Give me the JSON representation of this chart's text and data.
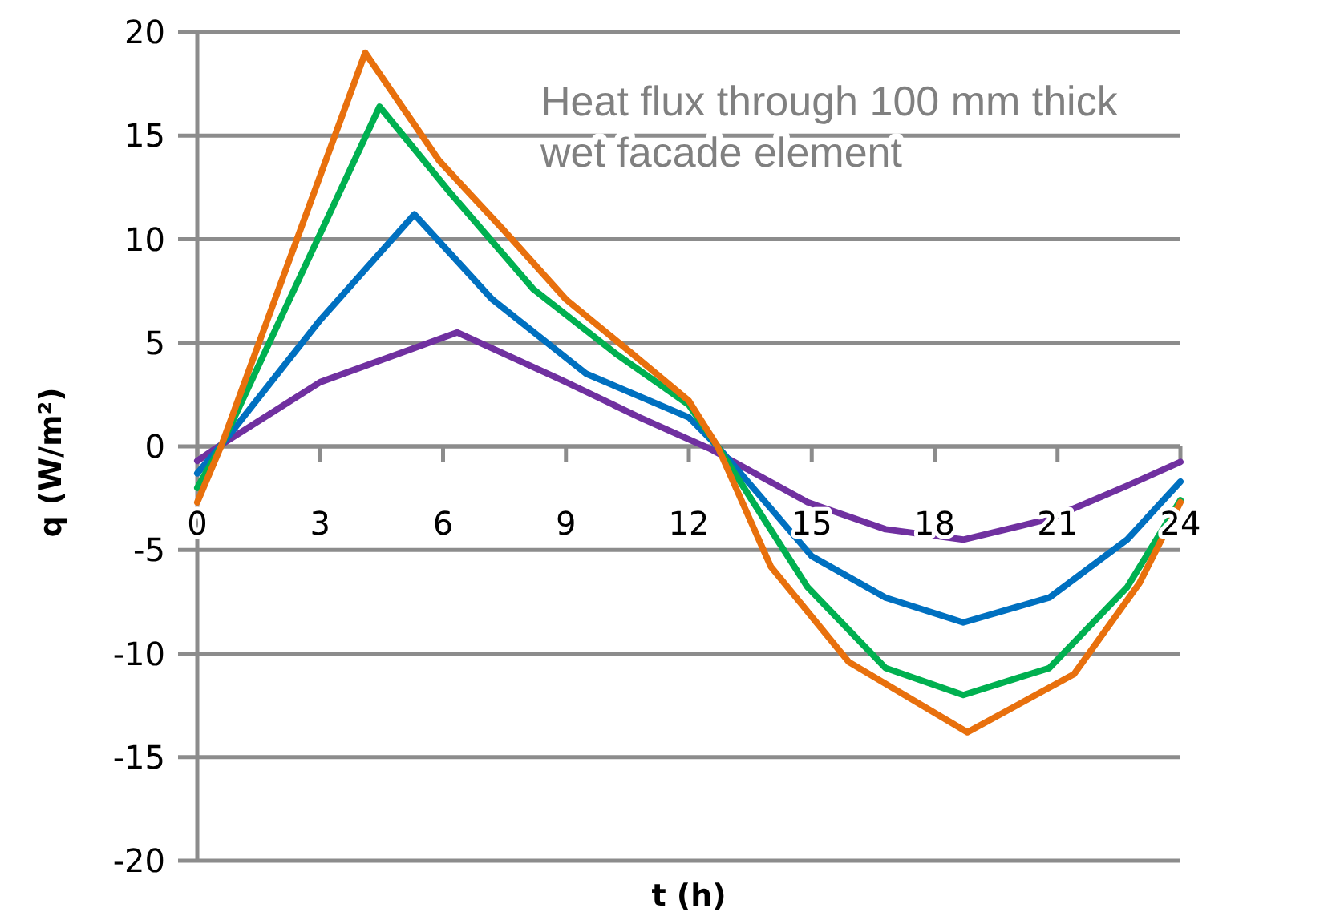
{
  "chart_data": {
    "type": "line",
    "title": "Heat flux through 100 mm thick wet facade element",
    "xlabel": "t (h)",
    "ylabel": "q (W/m²)",
    "xlim": [
      0,
      24
    ],
    "xticks": [
      0,
      3,
      6,
      9,
      12,
      15,
      18,
      21,
      24
    ],
    "ylim": [
      -20,
      20
    ],
    "yticks": [
      -20,
      -15,
      -10,
      -5,
      0,
      5,
      10,
      15,
      20
    ],
    "grid": "y",
    "marker": "none",
    "line_style": "solid",
    "series": [
      {
        "color": "#7030a0",
        "x": [
          0,
          0.6,
          3,
          6.35,
          8.9,
          10.8,
          12.5,
          14.9,
          16.8,
          18.7,
          20.8,
          22.7,
          24
        ],
        "values": [
          -0.7,
          0.1,
          3.1,
          5.5,
          3.2,
          1.4,
          -0.1,
          -2.7,
          -4,
          -4.5,
          -3.5,
          -1.9,
          -0.75
        ]
      },
      {
        "color": "#0070c0",
        "x": [
          0,
          0.6,
          3,
          5.3,
          7.2,
          9.5,
          12,
          12.7,
          15,
          16.8,
          18.7,
          20.8,
          22.7,
          24
        ],
        "values": [
          -1.3,
          0.1,
          6.1,
          11.2,
          7.1,
          3.5,
          1.4,
          0,
          -5.3,
          -7.3,
          -8.5,
          -7.3,
          -4.5,
          -1.7
        ]
      },
      {
        "color": "#00b050",
        "x": [
          0,
          0.6,
          4.45,
          6.15,
          8.2,
          10.2,
          12,
          12.7,
          14.9,
          16.8,
          18.7,
          20.8,
          22.7,
          24
        ],
        "values": [
          -2,
          0.1,
          16.4,
          12.3,
          7.6,
          4.5,
          2,
          0,
          -6.8,
          -10.7,
          -12,
          -10.7,
          -6.8,
          -2.6
        ]
      },
      {
        "color": "#e8700d",
        "x": [
          0,
          0.6,
          4.1,
          5.9,
          7.45,
          9,
          10.6,
          12,
          12.7,
          14,
          15.9,
          18.8,
          21.4,
          23,
          24
        ],
        "values": [
          -2.7,
          0.1,
          19,
          13.8,
          10.5,
          7.1,
          4.5,
          2.2,
          0,
          -5.8,
          -10.4,
          -13.8,
          -11,
          -6.6,
          -2.7
        ]
      }
    ]
  }
}
